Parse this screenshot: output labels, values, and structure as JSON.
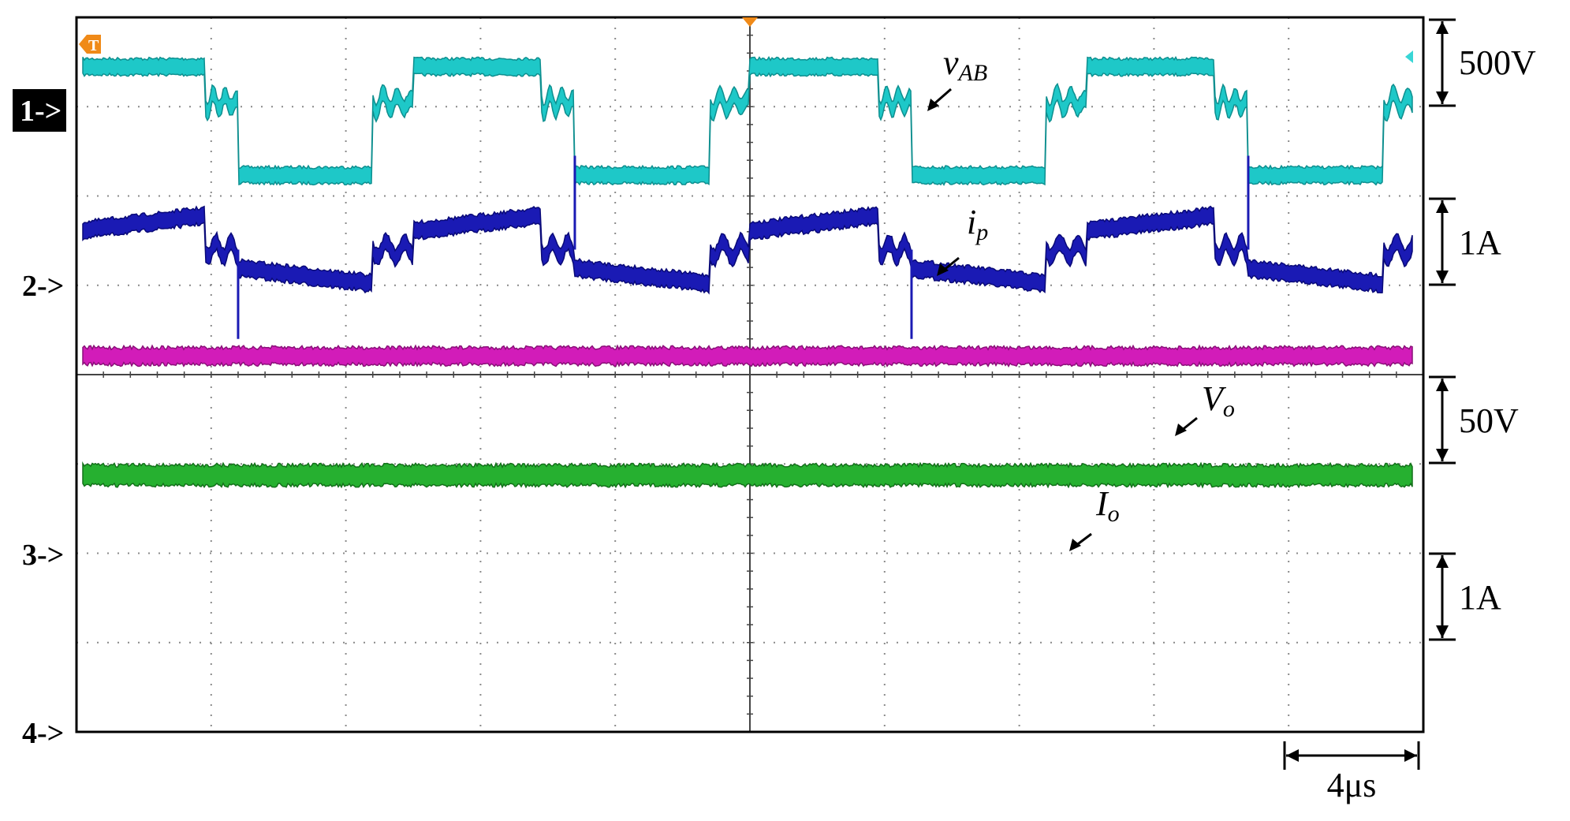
{
  "chart_data": {
    "type": "line",
    "title": "",
    "time_scale_label": "4μs",
    "divisions": {
      "x": 10,
      "y": 8
    },
    "channel_markers": [
      "1->",
      "2->",
      "3->",
      "4->"
    ],
    "trigger_marker": "T",
    "series": [
      {
        "name": "v_AB",
        "label_main": "v",
        "label_sub": "AB",
        "color": "#1ec8c8",
        "edge_color": "#0e8f8f",
        "scale_label": "500V",
        "unit_per_div": "500V",
        "waveform": "square",
        "period_div": 5,
        "high_level_div": 2.5,
        "low_level_div": 1.1,
        "zero_state_level_div": 1.75,
        "thickness_div": 0.2
      },
      {
        "name": "i_p",
        "label_main": "i",
        "label_sub": "p",
        "color": "#1a1ab4",
        "edge_color": "#0a0a78",
        "scale_label": "1A",
        "unit_per_div": "1A",
        "waveform": "trapezoid",
        "period_div": 5,
        "peak_div": 0.4,
        "thickness_div": 0.18
      },
      {
        "name": "V_o",
        "label_main": "V",
        "label_sub": "o",
        "color": "#d21cb9",
        "edge_color": "#8a1078",
        "scale_label": "50V",
        "unit_per_div": "50V",
        "waveform": "dc",
        "thickness_div": 0.25
      },
      {
        "name": "I_o",
        "label_main": "I",
        "label_sub": "o",
        "color": "#26b030",
        "edge_color": "#13701a",
        "scale_label": "1A",
        "unit_per_div": "1A",
        "waveform": "dc",
        "thickness_div": 0.3
      }
    ]
  }
}
